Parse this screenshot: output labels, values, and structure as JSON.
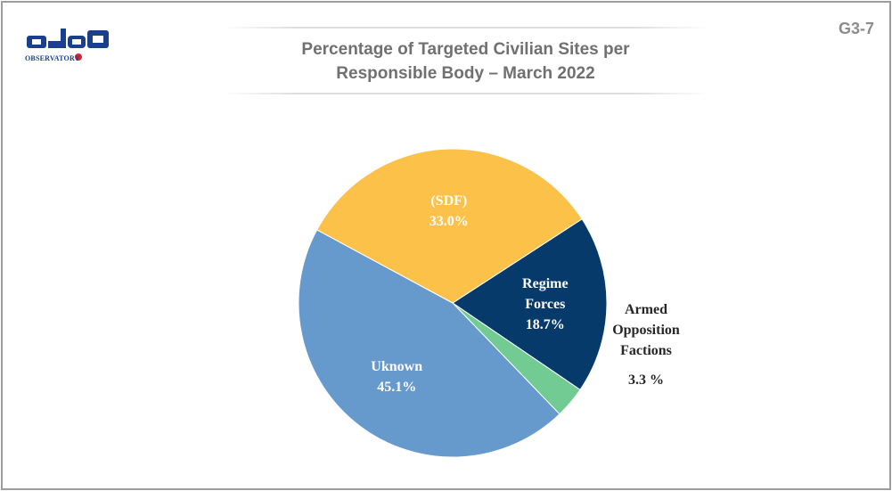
{
  "logo": {
    "arabic_text": "مرصد",
    "sub_text": "OBSERVATORY",
    "colors": {
      "primary": "#1a3f8c",
      "accent": "#e0242b"
    }
  },
  "figure_code": "G3-7",
  "chart_data": {
    "type": "pie",
    "title_lines": [
      "Percentage of Targeted Civilian Sites per",
      "Responsible Body – March 2022"
    ],
    "slices": [
      {
        "label_lines": [
          "Regime",
          "Forces"
        ],
        "value": 18.7,
        "value_text": "18.7%",
        "color": "#063a6b",
        "label_color": "#ffffff",
        "label_position": "inside"
      },
      {
        "label_lines": [
          "Armed",
          "Opposition",
          "Factions"
        ],
        "value": 3.3,
        "value_text": "3.3 %",
        "color": "#73cb94",
        "label_color": "#262626",
        "label_position": "outside-right"
      },
      {
        "label_lines": [
          "Uknown"
        ],
        "value": 45.1,
        "value_text": "45.1%",
        "color": "#6699cc",
        "label_color": "#ffffff",
        "label_position": "inside"
      },
      {
        "label_lines": [
          "(SDF)"
        ],
        "value": 33.0,
        "value_text": "33.0%",
        "color": "#fcc148",
        "label_color": "#ffffff",
        "label_position": "inside"
      }
    ],
    "start_angle_deg": 57,
    "direction": "clockwise"
  }
}
